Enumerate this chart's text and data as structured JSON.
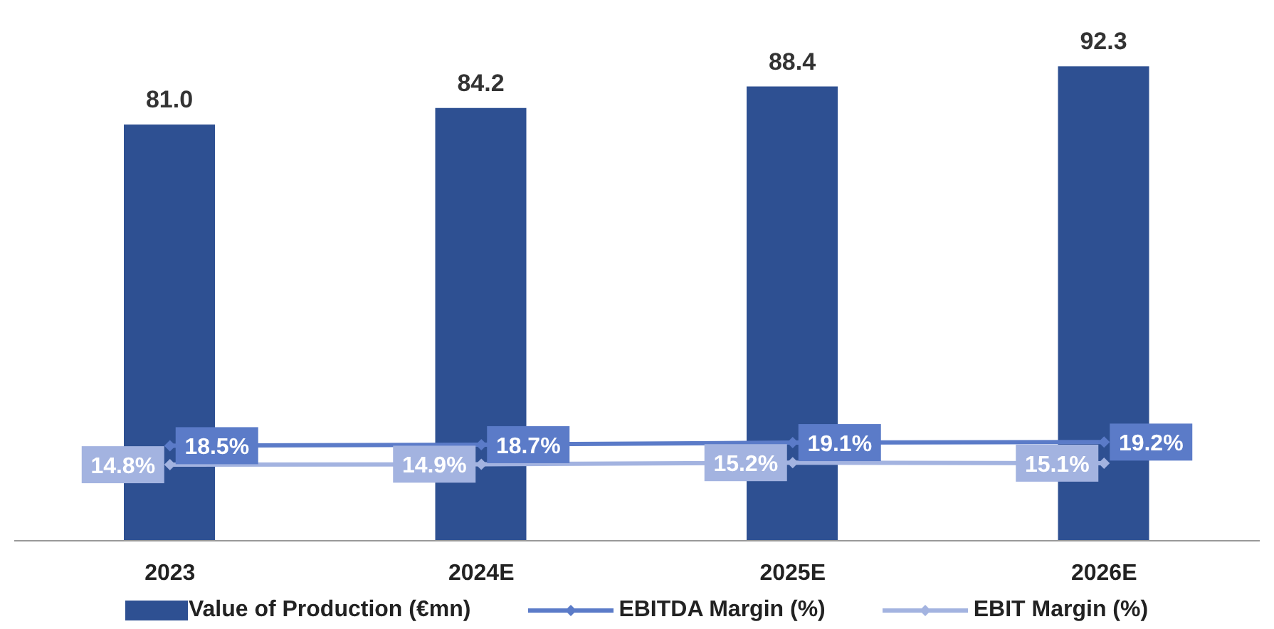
{
  "chart_data": {
    "type": "bar",
    "categories": [
      "2023",
      "2024E",
      "2025E",
      "2026E"
    ],
    "series": [
      {
        "name": "Value of Production (€mn)",
        "color": "#2e5092",
        "values": [
          81.0,
          84.2,
          88.4,
          92.3
        ],
        "value_labels": [
          "81.0",
          "84.2",
          "88.4",
          "92.3"
        ]
      },
      {
        "name": "EBITDA Margin (%)",
        "type": "line",
        "color": "#5b7bc8",
        "values": [
          18.5,
          18.7,
          19.1,
          19.2
        ],
        "value_labels": [
          "18.5%",
          "18.7%",
          "19.1%",
          "19.2%"
        ]
      },
      {
        "name": "EBIT Margin (%)",
        "type": "line",
        "color": "#a3b3e0",
        "values": [
          14.8,
          14.9,
          15.2,
          15.1
        ],
        "value_labels": [
          "14.8%",
          "14.9%",
          "15.2%",
          "15.1%"
        ]
      }
    ],
    "tick_labels": "x",
    "grid": false,
    "legend": "bottom",
    "marker": "diamond",
    "line_style": "solid"
  }
}
